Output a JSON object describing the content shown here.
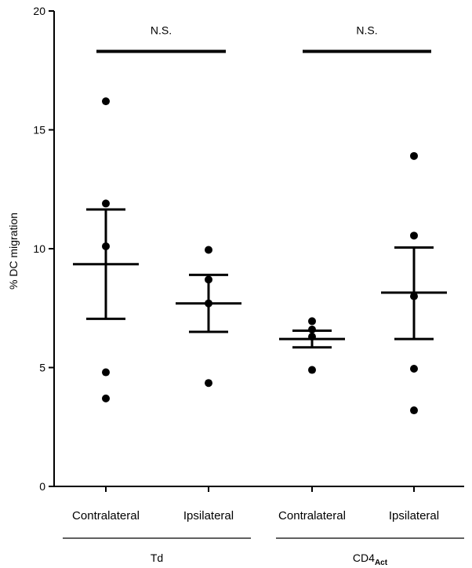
{
  "chart_data": {
    "type": "scatter",
    "title": "",
    "xlabel": "",
    "ylabel": "% DC migration",
    "ylim": [
      0,
      20
    ],
    "yticks": [
      0,
      5,
      10,
      15,
      20
    ],
    "grid": false,
    "categories": [
      "Contralateral",
      "Ipsilateral",
      "Contralateral",
      "Ipsilateral"
    ],
    "groups": [
      {
        "label": "Td",
        "label_main": "Td",
        "label_sub": "",
        "categories": [
          0,
          1
        ]
      },
      {
        "label": "CD4Act",
        "label_main": "CD4",
        "label_sub": "Act",
        "categories": [
          2,
          3
        ]
      }
    ],
    "series": [
      {
        "points": [
          16.2,
          11.9,
          10.1,
          4.8,
          3.7
        ],
        "mean": 9.35,
        "sem_upper": 11.65,
        "sem_lower": 7.05
      },
      {
        "points": [
          9.95,
          8.7,
          7.7,
          4.35
        ],
        "mean": 7.7,
        "sem_upper": 8.9,
        "sem_lower": 6.5
      },
      {
        "points": [
          6.95,
          6.6,
          6.3,
          4.9
        ],
        "mean": 6.2,
        "sem_upper": 6.55,
        "sem_lower": 5.85
      },
      {
        "points": [
          13.9,
          10.55,
          8.0,
          4.95,
          3.2
        ],
        "mean": 8.15,
        "sem_upper": 10.05,
        "sem_lower": 6.2
      }
    ],
    "annotations": [
      {
        "text": "N.S.",
        "from": 0,
        "to": 1,
        "y": 18.3
      },
      {
        "text": "N.S.",
        "from": 2,
        "to": 3,
        "y": 18.3
      }
    ]
  }
}
